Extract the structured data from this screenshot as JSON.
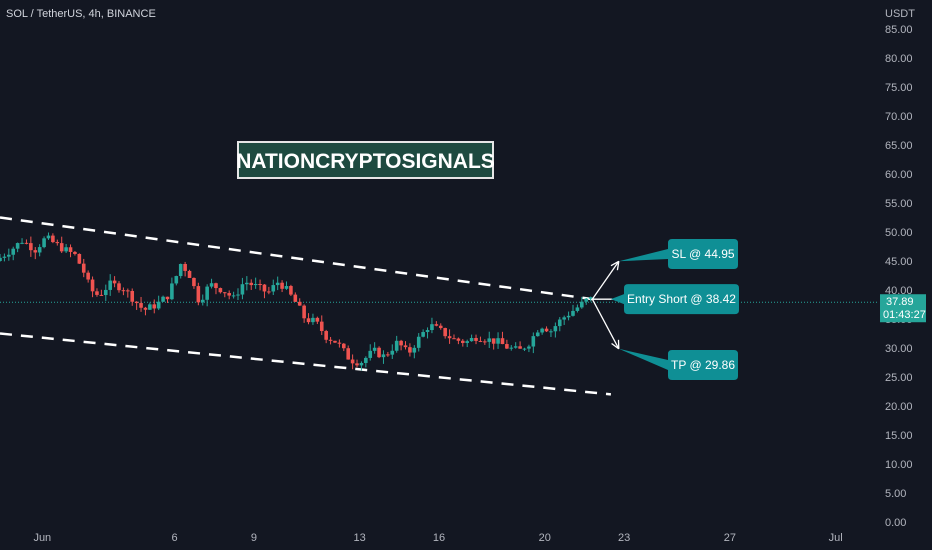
{
  "header": {
    "title": "SOL / TetherUS, 4h, BINANCE"
  },
  "brand": {
    "label": "NATIONCRYPTOSIGNALS"
  },
  "colors": {
    "background": "#131722",
    "up": "#26a69a",
    "down": "#ef5350",
    "callout": "#0f8f95",
    "text": "#b2b5be"
  },
  "last_price": {
    "price": "37.89",
    "countdown": "01:43:27",
    "value": 37.89
  },
  "annotations": {
    "sl": {
      "label": "SL @ 44.95",
      "value": 44.95
    },
    "entry": {
      "label": "Entry Short @ 38.42",
      "value": 38.42
    },
    "tp": {
      "label": "TP @ 29.86",
      "value": 29.86
    }
  },
  "chart_data": {
    "type": "candlestick",
    "title": "SOL / TetherUS, 4h, BINANCE",
    "y_unit": "USDT",
    "ylim": [
      0,
      90
    ],
    "y_ticks": [
      "85.00",
      "80.00",
      "75.00",
      "70.00",
      "65.00",
      "60.00",
      "55.00",
      "50.00",
      "45.00",
      "40.00",
      "35.00",
      "30.00",
      "25.00",
      "20.00",
      "15.00",
      "10.00",
      "5.00",
      "0.00"
    ],
    "y_tick_values": [
      85,
      80,
      75,
      70,
      65,
      60,
      55,
      50,
      45,
      40,
      35,
      30,
      25,
      20,
      15,
      10,
      5,
      0
    ],
    "x_ticks": [
      "Jun",
      "6",
      "9",
      "13",
      "16",
      "20",
      "23",
      "27",
      "Jul"
    ],
    "x_tick_days": [
      1,
      6,
      9,
      13,
      16,
      20,
      23,
      27,
      31
    ],
    "xlim_days": [
      -0.6,
      32.6
    ],
    "price_path": [
      [
        -0.6,
        45.0
      ],
      [
        0,
        47.0
      ],
      [
        0.4,
        48.5
      ],
      [
        0.9,
        47.0
      ],
      [
        1.3,
        49.0
      ],
      [
        1.8,
        47.5
      ],
      [
        2.4,
        46.0
      ],
      [
        2.7,
        43.5
      ],
      [
        3.0,
        40.0
      ],
      [
        3.3,
        39.0
      ],
      [
        3.7,
        41.0
      ],
      [
        4.2,
        40.5
      ],
      [
        4.6,
        38.5
      ],
      [
        5.0,
        36.5
      ],
      [
        5.5,
        37.5
      ],
      [
        5.9,
        39.0
      ],
      [
        6.2,
        42.0
      ],
      [
        6.4,
        44.5
      ],
      [
        6.7,
        43.0
      ],
      [
        7.1,
        38.0
      ],
      [
        7.5,
        41.0
      ],
      [
        8.0,
        40.0
      ],
      [
        8.4,
        38.5
      ],
      [
        8.8,
        41.5
      ],
      [
        9.3,
        40.5
      ],
      [
        9.7,
        39.5
      ],
      [
        10.1,
        41.5
      ],
      [
        10.4,
        40.0
      ],
      [
        10.8,
        37.5
      ],
      [
        11.1,
        35.0
      ],
      [
        11.5,
        34.5
      ],
      [
        11.9,
        32.0
      ],
      [
        12.3,
        31.0
      ],
      [
        12.8,
        28.0
      ],
      [
        13.2,
        27.5
      ],
      [
        13.7,
        29.5
      ],
      [
        14.1,
        28.5
      ],
      [
        14.6,
        31.0
      ],
      [
        15.0,
        29.0
      ],
      [
        15.3,
        31.0
      ],
      [
        15.8,
        34.0
      ],
      [
        16.2,
        33.0
      ],
      [
        16.7,
        31.5
      ],
      [
        17.2,
        31.0
      ],
      [
        17.6,
        32.0
      ],
      [
        18.0,
        31.5
      ],
      [
        18.4,
        31.0
      ],
      [
        18.8,
        30.0
      ],
      [
        19.2,
        29.5
      ],
      [
        19.6,
        31.0
      ],
      [
        20.0,
        34.0
      ],
      [
        20.4,
        33.0
      ],
      [
        20.8,
        35.0
      ],
      [
        21.1,
        36.0
      ],
      [
        21.4,
        37.0
      ],
      [
        21.8,
        38.42
      ]
    ],
    "channel": {
      "upper": [
        [
          -0.6,
          52.5
        ],
        [
          21.8,
          38.42
        ]
      ],
      "lower": [
        [
          -0.6,
          32.5
        ],
        [
          22.5,
          22.0
        ]
      ]
    },
    "arrows": [
      {
        "from": [
          21.8,
          38.42
        ],
        "to": [
          22.8,
          44.95
        ]
      },
      {
        "from": [
          21.8,
          38.42
        ],
        "to": [
          23.5,
          38.42
        ]
      },
      {
        "from": [
          21.8,
          38.42
        ],
        "to": [
          22.8,
          29.86
        ]
      }
    ]
  }
}
